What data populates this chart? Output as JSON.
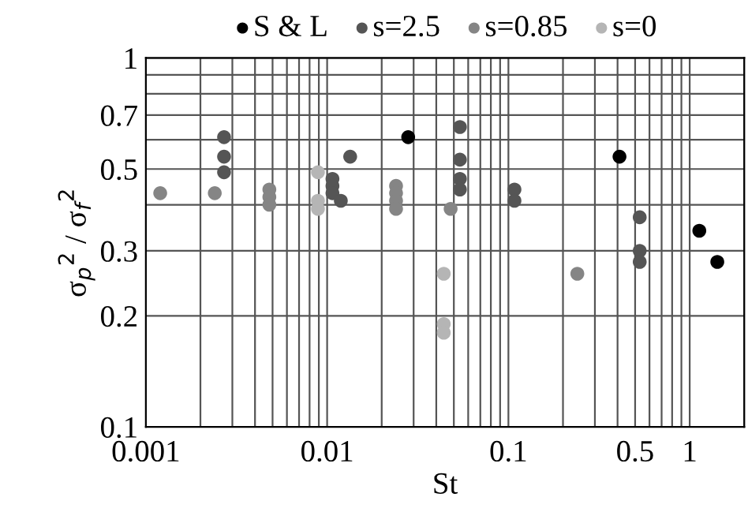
{
  "chart_data": {
    "type": "scatter",
    "xlabel": "St",
    "ylabel": "σ$_{p}$$^{2}$ / σ$_{f}$$^{2}$",
    "log": "xy",
    "grid": true,
    "legend": "top",
    "marker": "circle",
    "xlim": [
      0.001,
      2
    ],
    "ylim": [
      0.1,
      1
    ],
    "xticks": [
      0.001,
      0.01,
      0.1,
      0.5,
      1
    ],
    "yticks": [
      0.1,
      0.2,
      0.3,
      0.5,
      0.7,
      1
    ],
    "series": [
      {
        "name": "S & L",
        "color": "#000000",
        "x": [
          0.028,
          0.41,
          1.13,
          1.42
        ],
        "values": [
          0.61,
          0.54,
          0.34,
          0.28
        ]
      },
      {
        "name": "s=2.5",
        "color": "#555555",
        "x": [
          0.0027,
          0.0027,
          0.0027,
          0.0107,
          0.0107,
          0.0107,
          0.0119,
          0.0134,
          0.054,
          0.054,
          0.054,
          0.054,
          0.108,
          0.108,
          0.53,
          0.53,
          0.53
        ],
        "values": [
          0.61,
          0.54,
          0.49,
          0.47,
          0.45,
          0.43,
          0.41,
          0.54,
          0.65,
          0.53,
          0.47,
          0.44,
          0.44,
          0.41,
          0.37,
          0.3,
          0.28
        ]
      },
      {
        "name": "s=0.85",
        "color": "#858585",
        "x": [
          0.0012,
          0.0024,
          0.0048,
          0.0048,
          0.0048,
          0.024,
          0.024,
          0.024,
          0.024,
          0.048,
          0.24
        ],
        "values": [
          0.43,
          0.43,
          0.44,
          0.42,
          0.4,
          0.45,
          0.43,
          0.41,
          0.39,
          0.39,
          0.26
        ]
      },
      {
        "name": "s=0",
        "color": "#b5b5b5",
        "x": [
          0.0089,
          0.0089,
          0.0089,
          0.044,
          0.044,
          0.044
        ],
        "values": [
          0.49,
          0.41,
          0.39,
          0.26,
          0.19,
          0.18
        ]
      }
    ]
  }
}
